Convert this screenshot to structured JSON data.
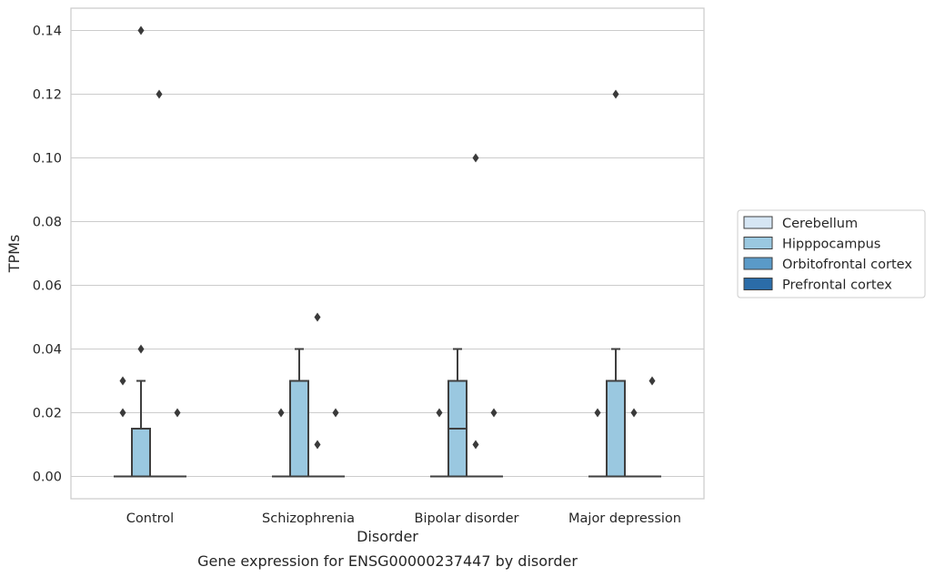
{
  "chart_data": {
    "type": "box",
    "title": "Gene expression for ENSG00000237447 by disorder",
    "xlabel": "Disorder",
    "ylabel": "TPMs",
    "ylim": [
      -0.007,
      0.147
    ],
    "yticks": [
      "0.00",
      "0.02",
      "0.04",
      "0.06",
      "0.08",
      "0.10",
      "0.12",
      "0.14"
    ],
    "grid": true,
    "legend_position": "right",
    "categories": [
      "Control",
      "Schizophrenia",
      "Bipolar disorder",
      "Major depression"
    ],
    "series": [
      {
        "name": "Cerebellum",
        "color": "#d6e6f4",
        "boxes": [
          {
            "q1": 0,
            "median": 0,
            "q3": 0,
            "whisker_low": 0,
            "whisker_high": 0,
            "outliers": [
              0.02,
              0.03
            ]
          },
          {
            "q1": 0,
            "median": 0,
            "q3": 0,
            "whisker_low": 0,
            "whisker_high": 0,
            "outliers": [
              0.02
            ]
          },
          {
            "q1": 0,
            "median": 0,
            "q3": 0,
            "whisker_low": 0,
            "whisker_high": 0,
            "outliers": [
              0.02
            ]
          },
          {
            "q1": 0,
            "median": 0,
            "q3": 0,
            "whisker_low": 0,
            "whisker_high": 0,
            "outliers": [
              0.02
            ]
          }
        ]
      },
      {
        "name": "Hipppocampus",
        "color": "#9ac8e0",
        "boxes": [
          {
            "q1": 0,
            "median": 0,
            "q3": 0.015,
            "whisker_low": 0,
            "whisker_high": 0.03,
            "outliers": [
              0.04,
              0.14
            ]
          },
          {
            "q1": 0,
            "median": 0,
            "q3": 0.03,
            "whisker_low": 0,
            "whisker_high": 0.04,
            "outliers": []
          },
          {
            "q1": 0,
            "median": 0.015,
            "q3": 0.03,
            "whisker_low": 0,
            "whisker_high": 0.04,
            "outliers": []
          },
          {
            "q1": 0,
            "median": 0,
            "q3": 0.03,
            "whisker_low": 0,
            "whisker_high": 0.04,
            "outliers": [
              0.12
            ]
          }
        ]
      },
      {
        "name": "Orbitofrontal cortex",
        "color": "#5a9ac8",
        "boxes": [
          {
            "q1": 0,
            "median": 0,
            "q3": 0,
            "whisker_low": 0,
            "whisker_high": 0,
            "outliers": [
              0.12
            ]
          },
          {
            "q1": 0,
            "median": 0,
            "q3": 0,
            "whisker_low": 0,
            "whisker_high": 0,
            "outliers": [
              0.01,
              0.05
            ]
          },
          {
            "q1": 0,
            "median": 0,
            "q3": 0,
            "whisker_low": 0,
            "whisker_high": 0,
            "outliers": [
              0.01,
              0.1
            ]
          },
          {
            "q1": 0,
            "median": 0,
            "q3": 0,
            "whisker_low": 0,
            "whisker_high": 0,
            "outliers": [
              0.02
            ]
          }
        ]
      },
      {
        "name": "Prefrontal cortex",
        "color": "#2b6ca8",
        "boxes": [
          {
            "q1": 0,
            "median": 0,
            "q3": 0,
            "whisker_low": 0,
            "whisker_high": 0,
            "outliers": [
              0.02
            ]
          },
          {
            "q1": 0,
            "median": 0,
            "q3": 0,
            "whisker_low": 0,
            "whisker_high": 0,
            "outliers": [
              0.02
            ]
          },
          {
            "q1": 0,
            "median": 0,
            "q3": 0,
            "whisker_low": 0,
            "whisker_high": 0,
            "outliers": [
              0.02
            ]
          },
          {
            "q1": 0,
            "median": 0,
            "q3": 0,
            "whisker_low": 0,
            "whisker_high": 0,
            "outliers": [
              0.03
            ]
          }
        ]
      }
    ]
  }
}
